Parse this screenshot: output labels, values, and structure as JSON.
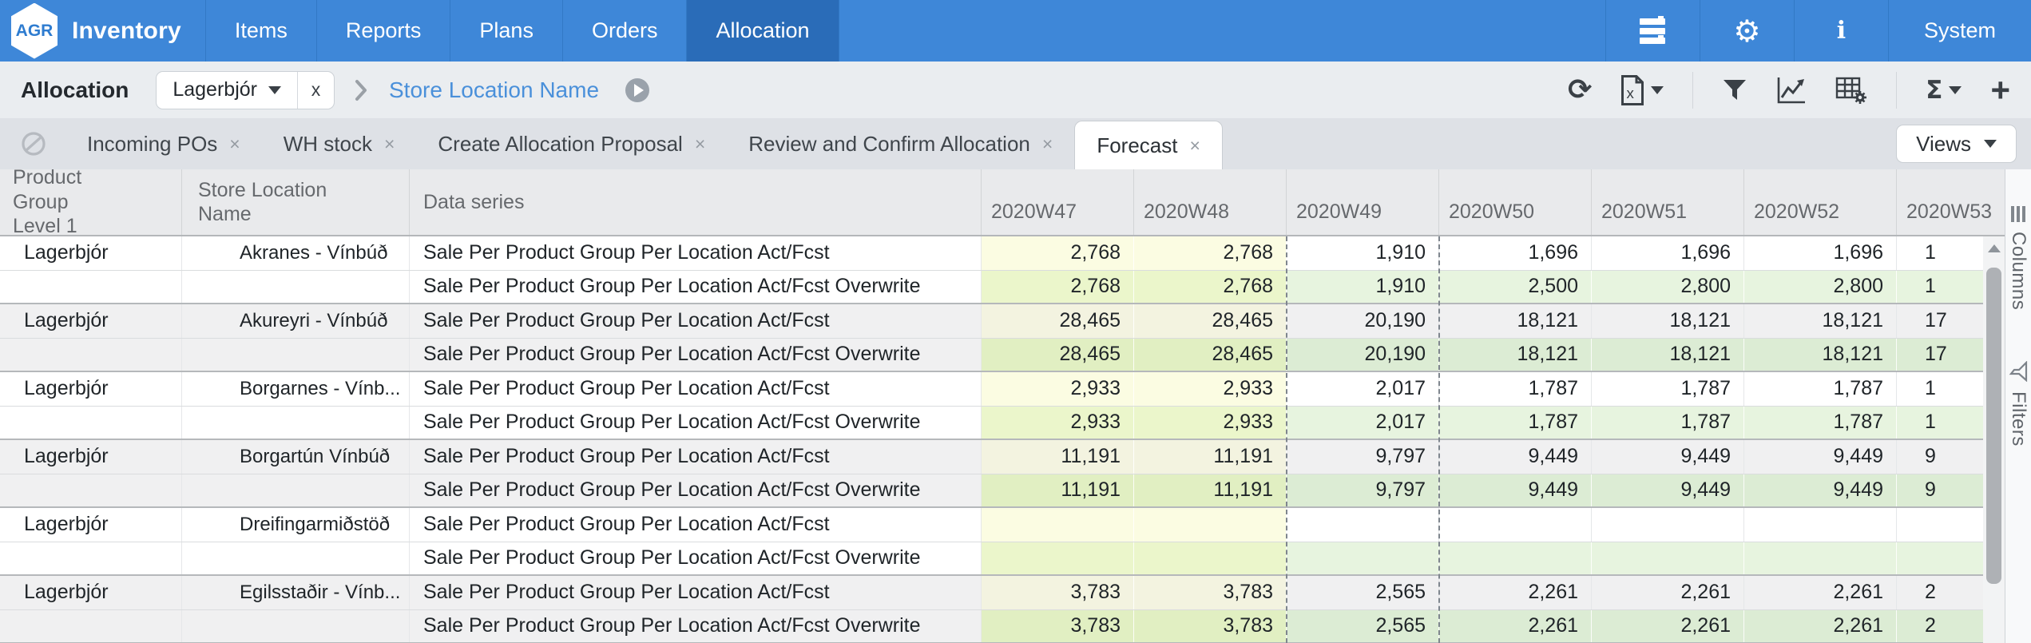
{
  "navbar": {
    "logo": "AGR",
    "brand": "Inventory",
    "items": [
      {
        "label": "Items"
      },
      {
        "label": "Reports"
      },
      {
        "label": "Plans"
      },
      {
        "label": "Orders"
      },
      {
        "label": "Allocation"
      }
    ],
    "active_item": "Allocation",
    "system_label": "System"
  },
  "toolbar": {
    "title": "Allocation",
    "filter_chip": {
      "label": "Lagerbjór",
      "remove_label": "x"
    },
    "breadcrumb_link": "Store Location Name"
  },
  "tabbar": {
    "tabs": [
      {
        "label": "Incoming POs"
      },
      {
        "label": "WH stock"
      },
      {
        "label": "Create Allocation Proposal"
      },
      {
        "label": "Review and Confirm Allocation"
      },
      {
        "label": "Forecast"
      }
    ],
    "active_tab": "Forecast",
    "views_button": "Views"
  },
  "side_panel": {
    "columns_label": "Columns",
    "filters_label": "Filters"
  },
  "icons": {
    "refresh": "⟳",
    "gear": "⚙",
    "info": "i",
    "sigma": "Σ",
    "plus": "+",
    "tab_close": "×"
  },
  "colors": {
    "navbar_blue": "#3e87d8",
    "navbar_active_blue": "#2a6cb8",
    "link_blue": "#4a90da",
    "actual_yellow": "#fbfce2",
    "overwrite_actual_green": "#ebf6cb",
    "overwrite_forecast_green": "#e7f4df"
  },
  "table": {
    "columns": [
      "Product Group Level 1",
      "Store Location Name",
      "Data series",
      "2020W47",
      "2020W48",
      "2020W49",
      "2020W50",
      "2020W51",
      "2020W52",
      "2020W53"
    ],
    "rows": [
      {
        "group": "Lagerbjór",
        "location": "Akranes - Vínbúð",
        "series": "Sale Per Product Group Per Location Act/Fcst",
        "kind": "actfcst",
        "values": [
          "2,768",
          "2,768",
          "1,910",
          "1,696",
          "1,696",
          "1,696",
          "1"
        ]
      },
      {
        "group": "",
        "location": "",
        "series": "Sale Per Product Group Per Location Act/Fcst Overwrite",
        "kind": "overwrite",
        "values": [
          "2,768",
          "2,768",
          "1,910",
          "2,500",
          "2,800",
          "2,800",
          "1"
        ]
      },
      {
        "group": "Lagerbjór",
        "location": "Akureyri - Vínbúð",
        "series": "Sale Per Product Group Per Location Act/Fcst",
        "kind": "actfcst",
        "values": [
          "28,465",
          "28,465",
          "20,190",
          "18,121",
          "18,121",
          "18,121",
          "17"
        ]
      },
      {
        "group": "",
        "location": "",
        "series": "Sale Per Product Group Per Location Act/Fcst Overwrite",
        "kind": "overwrite",
        "values": [
          "28,465",
          "28,465",
          "20,190",
          "18,121",
          "18,121",
          "18,121",
          "17"
        ]
      },
      {
        "group": "Lagerbjór",
        "location": "Borgarnes - Vínb...",
        "series": "Sale Per Product Group Per Location Act/Fcst",
        "kind": "actfcst",
        "values": [
          "2,933",
          "2,933",
          "2,017",
          "1,787",
          "1,787",
          "1,787",
          "1"
        ]
      },
      {
        "group": "",
        "location": "",
        "series": "Sale Per Product Group Per Location Act/Fcst Overwrite",
        "kind": "overwrite",
        "values": [
          "2,933",
          "2,933",
          "2,017",
          "1,787",
          "1,787",
          "1,787",
          "1"
        ]
      },
      {
        "group": "Lagerbjór",
        "location": "Borgartún Vínbúð",
        "series": "Sale Per Product Group Per Location Act/Fcst",
        "kind": "actfcst",
        "values": [
          "11,191",
          "11,191",
          "9,797",
          "9,449",
          "9,449",
          "9,449",
          "9"
        ]
      },
      {
        "group": "",
        "location": "",
        "series": "Sale Per Product Group Per Location Act/Fcst Overwrite",
        "kind": "overwrite",
        "values": [
          "11,191",
          "11,191",
          "9,797",
          "9,449",
          "9,449",
          "9,449",
          "9"
        ]
      },
      {
        "group": "Lagerbjór",
        "location": "Dreifingarmiðstöð",
        "series": "Sale Per Product Group Per Location Act/Fcst",
        "kind": "actfcst",
        "values": [
          "",
          "",
          "",
          "",
          "",
          "",
          ""
        ]
      },
      {
        "group": "",
        "location": "",
        "series": "Sale Per Product Group Per Location Act/Fcst Overwrite",
        "kind": "overwrite",
        "values": [
          "",
          "",
          "",
          "",
          "",
          "",
          ""
        ]
      },
      {
        "group": "Lagerbjór",
        "location": "Egilsstaðir - Vínb...",
        "series": "Sale Per Product Group Per Location Act/Fcst",
        "kind": "actfcst",
        "values": [
          "3,783",
          "3,783",
          "2,565",
          "2,261",
          "2,261",
          "2,261",
          "2"
        ]
      },
      {
        "group": "",
        "location": "",
        "series": "Sale Per Product Group Per Location Act/Fcst Overwrite",
        "kind": "overwrite",
        "values": [
          "3,783",
          "3,783",
          "2,565",
          "2,261",
          "2,261",
          "2,261",
          "2"
        ]
      }
    ]
  }
}
